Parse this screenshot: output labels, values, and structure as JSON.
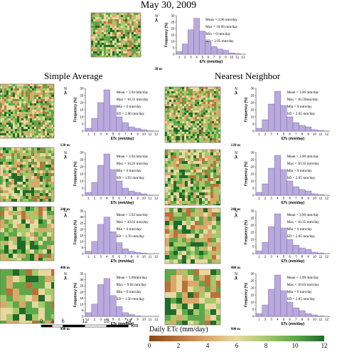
{
  "figure": {
    "title": "May 30, 2009",
    "left_column_title": "Simple Average",
    "right_column_title": "Nearest Neighbor",
    "scalebar_labels": [
      "0",
      "3",
      "6",
      "12",
      "18",
      "24"
    ],
    "scalebar_unit": "km",
    "colorbar_title": "Daily ETc (mm/day)",
    "colorbar_ticks": [
      "0",
      "2",
      "4",
      "6",
      "8",
      "10",
      "12"
    ],
    "colorbar_colors": [
      "#8b4513",
      "#b8733a",
      "#d9a86a",
      "#e8d8a0",
      "#a6c96a",
      "#5fa84a",
      "#1f6b2a"
    ],
    "north_label": "N",
    "bar_color": "#b9a9dd",
    "bar_edge": "#6d5c9e"
  },
  "chart_data": [
    {
      "id": "top-30m",
      "type": "bar",
      "resolution_label": "30 m",
      "xlabel": "ETc (mm/day)",
      "ylabel": "Frequency (%)",
      "x": [
        1,
        2,
        3,
        4,
        5,
        6,
        7,
        8,
        9,
        10,
        11,
        12
      ],
      "values": [
        2,
        8,
        19,
        28,
        18,
        10,
        6,
        4,
        3,
        1,
        0.5,
        0
      ],
      "ylim": [
        0,
        30
      ],
      "yticks": [
        0,
        5,
        10,
        15,
        20,
        25,
        30
      ],
      "stats": [
        "Mean = 3.96 mm/day",
        "Max = 10.66 mm/day",
        "Min = 0 mm/day",
        "SD = 2.05 mm/day"
      ]
    },
    {
      "id": "sa-120m",
      "type": "bar",
      "resolution_label": "120 m",
      "xlabel": "ETc (mm/day)",
      "ylabel": "Frequency (%)",
      "x": [
        1,
        2,
        3,
        4,
        5,
        6,
        7,
        8,
        9,
        10,
        11,
        12
      ],
      "values": [
        2,
        9,
        20,
        29,
        18,
        10,
        6,
        3,
        2,
        1,
        0.3,
        0
      ],
      "ylim": [
        0,
        30
      ],
      "yticks": [
        0,
        5,
        10,
        15,
        20,
        25,
        30
      ],
      "stats": [
        "Mean = 3.94 mm/day",
        "Max = 10.31 mm/day",
        "Min = 0 mm/day",
        "SD = 2.00 mm/day"
      ]
    },
    {
      "id": "sa-240m",
      "type": "bar",
      "resolution_label": "240 m",
      "xlabel": "ETc (mm/day)",
      "ylabel": "Frequency (%)",
      "x": [
        1,
        2,
        3,
        4,
        5,
        6,
        7,
        8,
        9,
        10,
        11,
        12
      ],
      "values": [
        2,
        9,
        21,
        29,
        18,
        10,
        5,
        3,
        2,
        1,
        0.2,
        0
      ],
      "ylim": [
        0,
        30
      ],
      "yticks": [
        0,
        5,
        10,
        15,
        20,
        25,
        30
      ],
      "stats": [
        "Mean = 3.94 mm/day",
        "Max = 10.26 mm/day",
        "Min = 0 mm/day",
        "SD = 1.93 mm/day"
      ]
    },
    {
      "id": "sa-480m",
      "type": "bar",
      "resolution_label": "480 m",
      "xlabel": "ETc (mm/day)",
      "ylabel": "Frequency (%)",
      "x": [
        1,
        2,
        3,
        4,
        5,
        6,
        7,
        8,
        9,
        10,
        11,
        12
      ],
      "values": [
        2,
        10,
        24,
        30,
        18,
        9,
        4,
        2,
        1,
        0.5,
        0,
        0
      ],
      "ylim": [
        0,
        35
      ],
      "yticks": [
        0,
        5,
        10,
        15,
        20,
        25,
        30,
        35
      ],
      "stats": [
        "Mean = 3.92 mm/day",
        "Max = 10.02 mm/day",
        "Min = 0 mm/day",
        "SD = 1.76 mm/day"
      ]
    },
    {
      "id": "sa-990m",
      "type": "bar",
      "resolution_label": "990 m",
      "xlabel": "ETc (mm/day)",
      "ylabel": "Frequency (%)",
      "x": [
        1,
        2,
        3,
        4,
        5,
        6,
        7,
        8,
        9,
        10,
        11,
        12
      ],
      "values": [
        3,
        10,
        26,
        31,
        17,
        8,
        3,
        1.5,
        0.5,
        0,
        0,
        0
      ],
      "ylim": [
        0,
        35
      ],
      "yticks": [
        0,
        5,
        10,
        15,
        20,
        25,
        30,
        35
      ],
      "stats": [
        "Mean = 3.90mm/day",
        "Max = 9.04 mm/day",
        "Min = 0 mm/day",
        "SD = 1.56 mm/day"
      ]
    },
    {
      "id": "nn-120m",
      "type": "bar",
      "resolution_label": "120 m",
      "xlabel": "ETc (mm/day)",
      "ylabel": "Frequency (%)",
      "x": [
        1,
        2,
        3,
        4,
        5,
        6,
        7,
        8,
        9,
        10,
        11,
        12
      ],
      "values": [
        2,
        8,
        19,
        28,
        18,
        10,
        6,
        4,
        3,
        1,
        0.5,
        0
      ],
      "ylim": [
        0,
        30
      ],
      "yticks": [
        0,
        5,
        10,
        15,
        20,
        25,
        30
      ],
      "stats": [
        "Mean = 3.96 mm/day",
        "Max = 10.59mm/day",
        "Min = 0 mm/day",
        "SD = 2.05 mm/day"
      ]
    },
    {
      "id": "nn-240m",
      "type": "bar",
      "resolution_label": "240 m",
      "xlabel": "ETc (mm/day)",
      "ylabel": "Frequency (%)",
      "x": [
        1,
        2,
        3,
        4,
        5,
        6,
        7,
        8,
        9,
        10,
        11,
        12
      ],
      "values": [
        2,
        8,
        19,
        28,
        18,
        10,
        6,
        4,
        3,
        1,
        0.5,
        0
      ],
      "ylim": [
        0,
        30
      ],
      "yticks": [
        0,
        5,
        10,
        15,
        20,
        25,
        30
      ],
      "stats": [
        "Mean = 3.96 mm/day",
        "Max = 10.35 mm/day",
        "Min = 0 mm/day",
        "SD = 2.05 mm/day"
      ]
    },
    {
      "id": "nn-480m",
      "type": "bar",
      "resolution_label": "480 m",
      "xlabel": "ETc (mm/day)",
      "ylabel": "Frequency (%)",
      "x": [
        1,
        2,
        3,
        4,
        5,
        6,
        7,
        8,
        9,
        10,
        11,
        12
      ],
      "values": [
        2,
        8,
        19,
        28,
        18,
        10,
        6,
        4,
        3,
        1,
        0.5,
        0
      ],
      "ylim": [
        0,
        30
      ],
      "yticks": [
        0,
        5,
        10,
        15,
        20,
        25,
        30
      ],
      "stats": [
        "Mean = 3.96 mm/day",
        "Max = 10.35 mm/day",
        "Min = 0 mm/day",
        "SD = 2.05 mm/day"
      ]
    },
    {
      "id": "nn-990m",
      "type": "bar",
      "resolution_label": "990 m",
      "xlabel": "ETc (mm/day)",
      "ylabel": "Frequency (%)",
      "x": [
        1,
        2,
        3,
        4,
        5,
        6,
        7,
        8,
        9,
        10,
        11,
        12
      ],
      "values": [
        2,
        8,
        19,
        29,
        18,
        10,
        6,
        4,
        2,
        1,
        0.3,
        0
      ],
      "ylim": [
        0,
        30
      ],
      "yticks": [
        0,
        5,
        10,
        15,
        20,
        25,
        30
      ],
      "stats": [
        "Mean = 3.99 mm/day",
        "Max = 10.03 mm/day",
        "Min = 0 mm/day",
        "SD = 2.05 mm/day"
      ]
    }
  ]
}
